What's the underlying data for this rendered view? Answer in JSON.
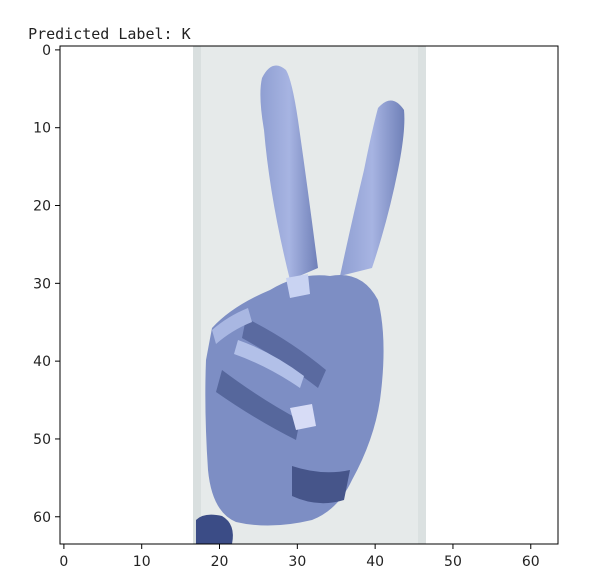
{
  "output": {
    "prefix": "Predicted Label: ",
    "predicted_label": "K"
  },
  "chart_data": {
    "type": "image",
    "title": "",
    "xlabel": "",
    "ylabel": "",
    "xlim": [
      -0.5,
      63.5
    ],
    "ylim": [
      63.5,
      -0.5
    ],
    "x_ticks": [
      0,
      10,
      20,
      30,
      40,
      50,
      60
    ],
    "y_ticks": [
      0,
      10,
      20,
      30,
      40,
      50,
      60
    ],
    "image_content": "pixelated bluish-tinted photo of a hand showing a two-finger V sign on a pale backdrop",
    "backdrop_columns": [
      16.5,
      46.5
    ],
    "colors": {
      "backdrop": "#e6eaea",
      "hand": "#7f90c4",
      "hand_shadow": "#4f5f94",
      "hand_highlight": "#b4c2e8",
      "frame": "#000000"
    }
  }
}
